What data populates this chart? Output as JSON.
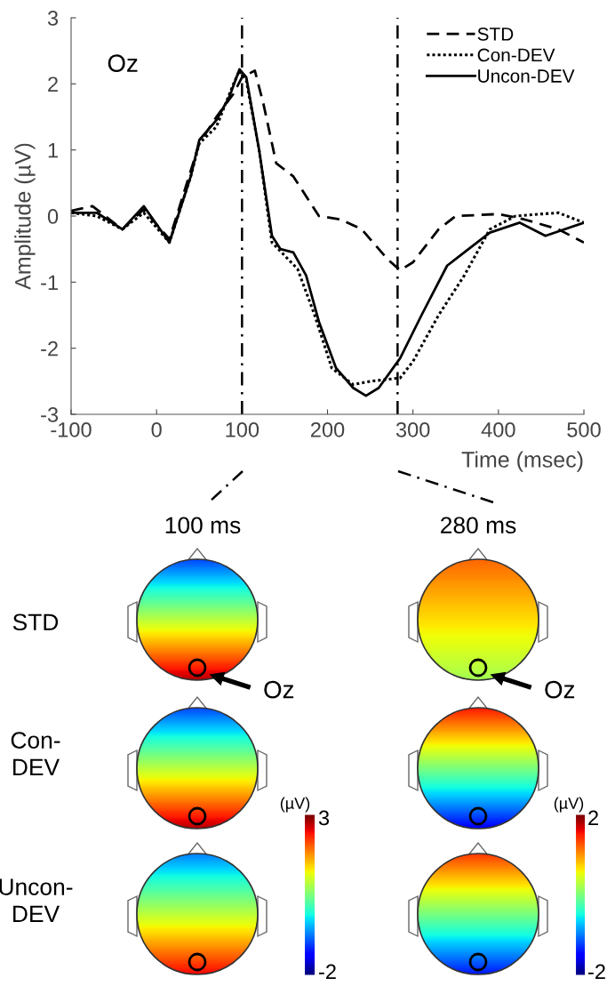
{
  "chart_data": [
    {
      "type": "line",
      "xlabel": "Time (msec)",
      "ylabel": "Amplitude (µV)",
      "xlim": [
        -100,
        500
      ],
      "xticks": [
        -100,
        0,
        100,
        200,
        300,
        400,
        500
      ],
      "ylim": [
        -3,
        3
      ],
      "yticks": [
        -3,
        -2,
        -1,
        0,
        1,
        2,
        3
      ],
      "grid": false,
      "legend": "top right",
      "marker": "none",
      "annotations": [
        "Oz"
      ],
      "ref_lines": [
        {
          "axis": "x",
          "value": 100,
          "color": "#000000",
          "line_style": "dashdot"
        },
        {
          "axis": "x",
          "value": 282,
          "color": "#000000",
          "line_style": "dashdot"
        }
      ],
      "series": [
        {
          "name": "STD",
          "color": "#000000",
          "line_style": "dashed",
          "x": [
            -100,
            -75,
            -40,
            -15,
            15,
            50,
            70,
            90,
            100,
            115,
            125,
            140,
            160,
            190,
            215,
            240,
            270,
            285,
            300,
            330,
            350,
            400,
            430,
            470,
            500
          ],
          "values": [
            0.08,
            0.15,
            -0.2,
            0.1,
            -0.35,
            1.1,
            1.5,
            1.85,
            2.1,
            2.2,
            1.7,
            0.8,
            0.6,
            0.0,
            -0.05,
            -0.2,
            -0.65,
            -0.82,
            -0.7,
            -0.2,
            0.0,
            0.03,
            -0.05,
            -0.2,
            -0.4
          ]
        },
        {
          "name": "Con-DEV",
          "color": "#000000",
          "line_style": "dotted",
          "x": [
            -100,
            -70,
            -40,
            -15,
            15,
            40,
            50,
            70,
            90,
            97,
            105,
            120,
            135,
            150,
            165,
            185,
            205,
            230,
            250,
            285,
            300,
            330,
            360,
            390,
            420,
            470,
            500
          ],
          "values": [
            0.05,
            0.0,
            -0.2,
            0.05,
            -0.4,
            0.6,
            1.1,
            1.35,
            2.0,
            2.2,
            2.05,
            1.0,
            -0.4,
            -0.6,
            -0.8,
            -1.5,
            -2.3,
            -2.55,
            -2.5,
            -2.45,
            -2.2,
            -1.5,
            -0.9,
            -0.2,
            0.0,
            0.05,
            -0.1
          ]
        },
        {
          "name": "Uncon-DEV",
          "color": "#000000",
          "line_style": "solid",
          "x": [
            -100,
            -70,
            -40,
            -15,
            15,
            40,
            50,
            70,
            85,
            97,
            105,
            120,
            135,
            145,
            160,
            175,
            190,
            210,
            230,
            245,
            260,
            285,
            310,
            340,
            360,
            390,
            425,
            455,
            500
          ],
          "values": [
            0.05,
            0.05,
            -0.2,
            0.15,
            -0.4,
            0.6,
            1.15,
            1.45,
            1.8,
            2.22,
            2.1,
            1.0,
            -0.3,
            -0.5,
            -0.55,
            -0.9,
            -1.6,
            -2.3,
            -2.6,
            -2.72,
            -2.6,
            -2.15,
            -1.5,
            -0.75,
            -0.55,
            -0.25,
            -0.1,
            -0.3,
            -0.1
          ]
        }
      ]
    },
    {
      "type": "other",
      "annotations": [
        "100 ms",
        "280 ms",
        "STD",
        "Con-\nDEV",
        "Uncon-\nDEV",
        "Oz",
        "Oz",
        "(µV)",
        "3",
        "-2",
        "(µV)",
        "2",
        "-2"
      ]
    }
  ]
}
